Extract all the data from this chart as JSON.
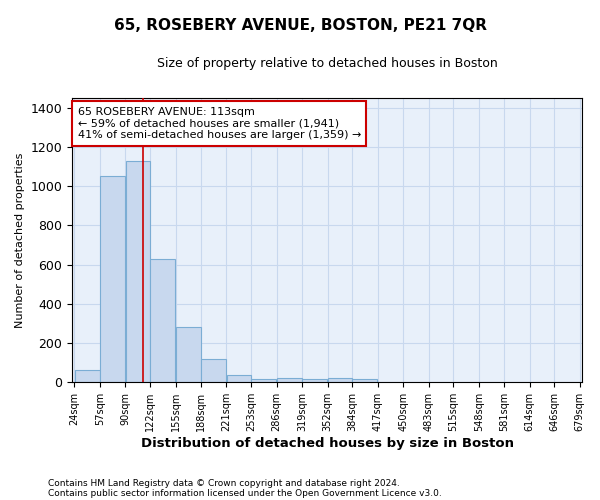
{
  "title": "65, ROSEBERY AVENUE, BOSTON, PE21 7QR",
  "subtitle": "Size of property relative to detached houses in Boston",
  "xlabel": "Distribution of detached houses by size in Boston",
  "ylabel": "Number of detached properties",
  "footnote1": "Contains HM Land Registry data © Crown copyright and database right 2024.",
  "footnote2": "Contains public sector information licensed under the Open Government Licence v3.0.",
  "annotation_line1": "65 ROSEBERY AVENUE: 113sqm",
  "annotation_line2": "← 59% of detached houses are smaller (1,941)",
  "annotation_line3": "41% of semi-detached houses are larger (1,359) →",
  "property_size": 113,
  "bar_left_edges": [
    24,
    57,
    90,
    122,
    155,
    188,
    221,
    253,
    286,
    319,
    352,
    384,
    417,
    450,
    483,
    515,
    548,
    581,
    614,
    646
  ],
  "bar_widths": [
    33,
    33,
    32,
    33,
    33,
    33,
    32,
    33,
    33,
    33,
    32,
    33,
    33,
    33,
    32,
    33,
    33,
    33,
    32,
    33
  ],
  "bar_heights": [
    65,
    1050,
    1130,
    630,
    280,
    120,
    40,
    15,
    20,
    15,
    20,
    15,
    0,
    0,
    0,
    0,
    0,
    0,
    0,
    0
  ],
  "bar_color": "#c8d8ee",
  "bar_edge_color": "#7badd4",
  "vline_color": "#cc0000",
  "vline_x": 113,
  "annotation_box_color": "#cc0000",
  "ylim": [
    0,
    1450
  ],
  "yticks": [
    0,
    200,
    400,
    600,
    800,
    1000,
    1200,
    1400
  ],
  "xtick_labels": [
    "24sqm",
    "57sqm",
    "90sqm",
    "122sqm",
    "155sqm",
    "188sqm",
    "221sqm",
    "253sqm",
    "286sqm",
    "319sqm",
    "352sqm",
    "384sqm",
    "417sqm",
    "450sqm",
    "483sqm",
    "515sqm",
    "548sqm",
    "581sqm",
    "614sqm",
    "646sqm",
    "679sqm"
  ],
  "grid_color": "#c8d8ee",
  "background_color": "#e8f0fa"
}
